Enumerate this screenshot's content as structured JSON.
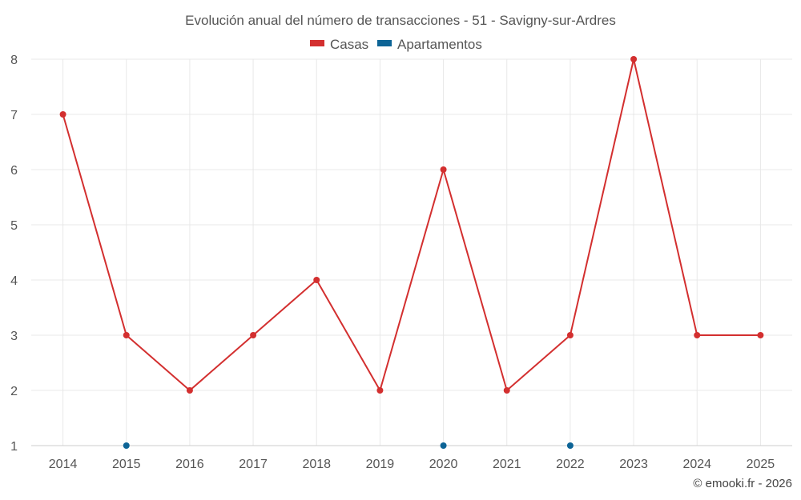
{
  "chart_data": {
    "type": "line",
    "title": "Evolución anual del número de transacciones - 51 - Savigny-sur-Ardres",
    "x": [
      "2014",
      "2015",
      "2016",
      "2017",
      "2018",
      "2019",
      "2020",
      "2021",
      "2022",
      "2023",
      "2024",
      "2025"
    ],
    "y_ticks": [
      "1",
      "2",
      "3",
      "4",
      "5",
      "6",
      "7",
      "8"
    ],
    "ylim": [
      1,
      8
    ],
    "grid": true,
    "legend_position": "top-center",
    "series": [
      {
        "name": "Casas",
        "color": "#d32f2f",
        "values": [
          7,
          3,
          2,
          3,
          4,
          2,
          6,
          2,
          3,
          8,
          3,
          3
        ]
      },
      {
        "name": "Apartamentos",
        "color": "#0d6496",
        "values": [
          null,
          1,
          null,
          null,
          null,
          null,
          1,
          null,
          1,
          null,
          null,
          null
        ]
      }
    ],
    "credit": "© emooki.fr - 2026"
  }
}
